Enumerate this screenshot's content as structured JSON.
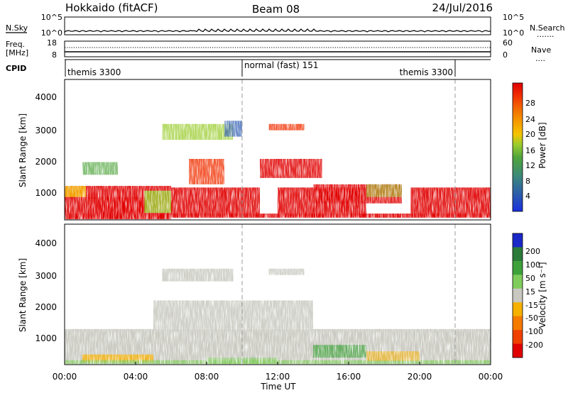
{
  "header": {
    "station": "Hokkaido (fitACF)",
    "beam": "Beam 08",
    "date": "24/Jul/2016"
  },
  "top_panel": {
    "left_label": "N.Sky",
    "left_ticks": [
      "10^5",
      "10^0"
    ],
    "right_ticks": [
      "10^5",
      "10^0"
    ],
    "right_label": "N.Search",
    "right_key": "......."
  },
  "freq_panel": {
    "left_label_line1": "Freq.",
    "left_label_line2": "[MHz]",
    "left_ticks": [
      "18",
      "8"
    ],
    "right_ticks": [
      "60",
      "0"
    ],
    "right_label": "Nave",
    "right_key": "...."
  },
  "cpid_panel": {
    "label": "CPID",
    "segments": [
      "themis 3300",
      "normal (fast) 151",
      "themis 3300"
    ]
  },
  "chart_data": [
    {
      "type": "heatmap",
      "parameter": "Power",
      "ylabel": "Slant Range [km]",
      "y_ticks": [
        "1000",
        "2000",
        "3000",
        "4000"
      ],
      "ylim": [
        180,
        4600
      ],
      "colorbar": {
        "label": "Power [dB]",
        "ticks": [
          "4",
          "8",
          "12",
          "16",
          "20",
          "24",
          "28"
        ],
        "colors": [
          "#1a2fe0",
          "#2a58b0",
          "#3c8a78",
          "#4fa53c",
          "#9acc2e",
          "#f5c400",
          "#f59a00",
          "#f26a00",
          "#f03000",
          "#e00000"
        ]
      }
    },
    {
      "type": "heatmap",
      "parameter": "Velocity",
      "ylabel": "Slant Range [km]",
      "y_ticks": [
        "1000",
        "2000",
        "3000",
        "4000"
      ],
      "ylim": [
        180,
        4600
      ],
      "colorbar": {
        "label": "Velocity [m s⁻¹]",
        "ticks": [
          "200",
          "100",
          "50",
          "15",
          "-15",
          "-50",
          "-100",
          "-200"
        ],
        "colors": [
          "#1a28c8",
          "#2a7a3a",
          "#3ea13a",
          "#7fcc5a",
          "#c8c8c0",
          "#f5b000",
          "#f57a00",
          "#f04000",
          "#e00000"
        ]
      }
    }
  ],
  "time_axis": {
    "ticks": [
      "00:00",
      "04:00",
      "08:00",
      "12:00",
      "16:00",
      "20:00",
      "00:00"
    ],
    "label": "Time UT",
    "range_hours": [
      0,
      24
    ],
    "mode_change_hours": [
      10.0,
      22.0
    ]
  }
}
